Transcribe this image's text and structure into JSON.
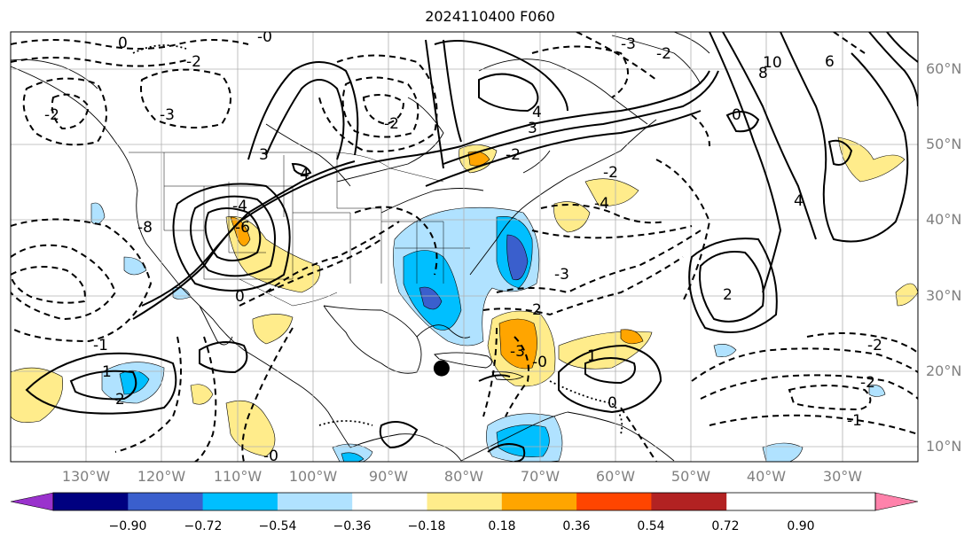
{
  "title": "2024110400 F060",
  "map": {
    "lon_range": [
      -140,
      -20
    ],
    "lat_range": [
      7.5,
      65
    ],
    "lat_ticks": [
      "10°N",
      "20°N",
      "30°N",
      "40°N",
      "50°N",
      "60°N"
    ],
    "lon_ticks": [
      "130°W",
      "120°W",
      "110°W",
      "100°W",
      "90°W",
      "80°W",
      "70°W",
      "60°W",
      "50°W",
      "40°W",
      "30°W"
    ],
    "marker": {
      "name": "storm-center-marker",
      "lon": -83,
      "lat": 20
    }
  },
  "contour_labels": [
    "0",
    "-0",
    "-3",
    "3",
    "-2",
    "4",
    "-4",
    "-6",
    "-8",
    "-1",
    "1",
    "2",
    "-2",
    "0",
    "6",
    "8",
    "10",
    "4",
    "-3",
    "-2",
    "-2",
    "-1",
    "3",
    "2",
    "1",
    "-3",
    "-0",
    "0",
    "-2",
    "4",
    "-4",
    "2",
    "-3",
    "-2",
    "-0",
    "-2",
    "-2",
    "0"
  ],
  "colorbar": {
    "colors": [
      "#9a32cd",
      "#000080",
      "#3a5fcd",
      "#00bfff",
      "#b0e2ff",
      "#ffffff",
      "#ffec8b",
      "#ffa500",
      "#ff4500",
      "#b22222",
      "#ff82ab"
    ],
    "tick_labels": [
      "−0.90",
      "−0.72",
      "−0.54",
      "−0.36",
      "−0.18",
      "0.18",
      "0.36",
      "0.54",
      "0.72",
      "0.90"
    ]
  }
}
